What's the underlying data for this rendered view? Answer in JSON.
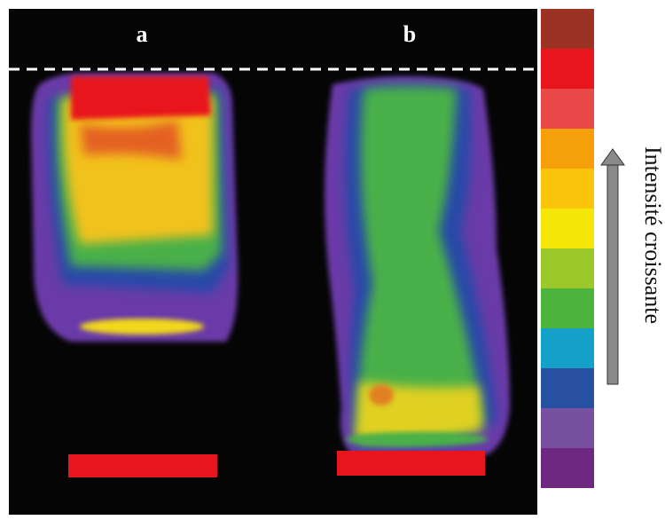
{
  "panels": {
    "a": "a",
    "b": "b"
  },
  "scale_label": "Intensité croissante"
}
